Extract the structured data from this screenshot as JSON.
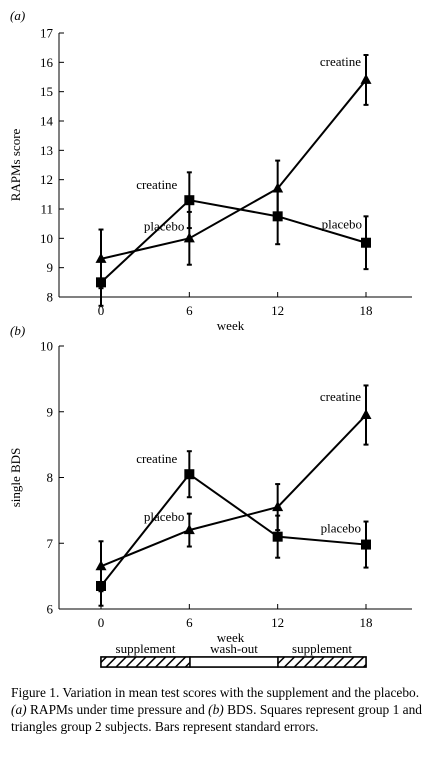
{
  "chart_data": [
    {
      "type": "line",
      "panel_label": "(a)",
      "xlabel": "week",
      "ylabel": "RAPMs score",
      "x": [
        0,
        6,
        12,
        18
      ],
      "x_ticks": [
        "0",
        "6",
        "12",
        "18"
      ],
      "ylim": [
        8,
        17
      ],
      "y_ticks": [
        "8",
        "9",
        "10",
        "11",
        "12",
        "13",
        "14",
        "15",
        "16",
        "17"
      ],
      "grid": false,
      "series": [
        {
          "marker": "square",
          "values": [
            8.5,
            11.3,
            10.75,
            9.85
          ],
          "errors": [
            0.8,
            0.95,
            0.95,
            0.9
          ],
          "labels": [
            null,
            "creatine",
            null,
            "placebo"
          ]
        },
        {
          "marker": "triangle",
          "values": [
            9.3,
            10.0,
            11.7,
            15.4
          ],
          "errors": [
            1.0,
            0.9,
            0.95,
            0.85
          ],
          "labels": [
            null,
            "placebo",
            null,
            "creatine"
          ]
        }
      ]
    },
    {
      "type": "line",
      "panel_label": "(b)",
      "xlabel": "week",
      "ylabel": "single BDS",
      "x": [
        0,
        6,
        12,
        18
      ],
      "x_ticks": [
        "0",
        "6",
        "12",
        "18"
      ],
      "ylim": [
        6,
        10
      ],
      "y_ticks": [
        "6",
        "7",
        "8",
        "9",
        "10"
      ],
      "grid": false,
      "series": [
        {
          "marker": "square",
          "values": [
            6.35,
            8.05,
            7.1,
            6.98
          ],
          "errors": [
            0.3,
            0.35,
            0.32,
            0.35
          ],
          "labels": [
            null,
            "creatine",
            null,
            "placebo"
          ]
        },
        {
          "marker": "triangle",
          "values": [
            6.65,
            7.2,
            7.55,
            8.95
          ],
          "errors": [
            0.38,
            0.25,
            0.35,
            0.45
          ],
          "labels": [
            null,
            "placebo",
            null,
            "creatine"
          ]
        }
      ]
    }
  ],
  "timeline": {
    "segments": [
      {
        "label": "supplement",
        "pattern": "hatched"
      },
      {
        "label": "wash-out",
        "pattern": "plain"
      },
      {
        "label": "supplement",
        "pattern": "hatched"
      }
    ]
  },
  "caption": {
    "lead": "Figure 1. Variation in mean test scores with the supplement and the placebo. ",
    "a_tag": "(a)",
    "a_text": " RAPMs under time pressure and ",
    "b_tag": "(b)",
    "b_text": " BDS. Squares represent group 1 and triangles group 2 subjects. Bars represent standard errors."
  }
}
